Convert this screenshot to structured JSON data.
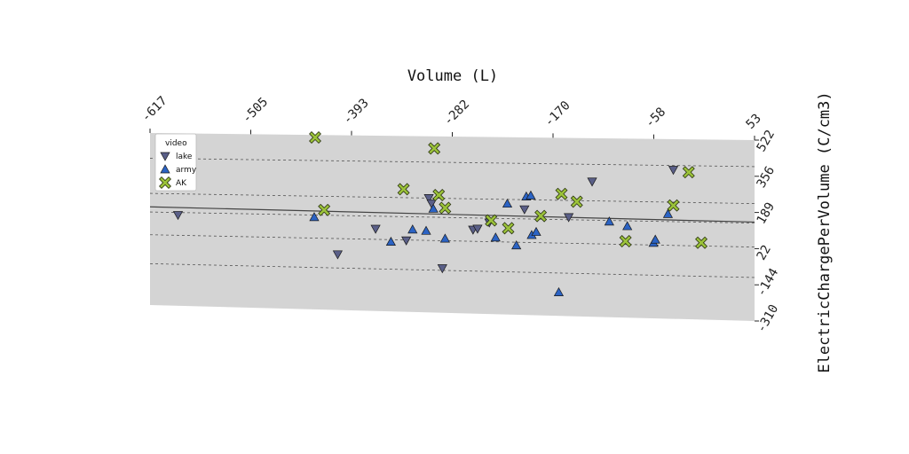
{
  "chart_data": {
    "type": "scatter",
    "xlabel": "Volume (L)",
    "ylabel": "ElectricChargePerVolume (C/cm3)",
    "x_ticks": [
      "-617",
      "-505",
      "-393",
      "-282",
      "-170",
      "-58",
      "53"
    ],
    "y_ticks": [
      "522",
      "356",
      "189",
      "22",
      "-144",
      "-310"
    ],
    "xlim": [
      -617,
      53
    ],
    "ylim": [
      -310,
      522
    ],
    "legend": {
      "title": "video",
      "placement": "top-left"
    },
    "trend_line": {
      "x": [
        -617,
        53
      ],
      "y": [
        165,
        145
      ]
    },
    "grid": "dashed-horizontal",
    "colors": {
      "lake": "#5a5f88",
      "army": "#2b63c4",
      "AK": "#9bc23a",
      "plot_bg": "#d4d4d4"
    },
    "series": [
      {
        "name": "lake",
        "marker": "triangle-down",
        "points": [
          [
            -586,
            128
          ],
          [
            -409,
            -45
          ],
          [
            -367,
            80
          ],
          [
            -333,
            28
          ],
          [
            -308,
            230
          ],
          [
            -305,
            205
          ],
          [
            -293,
            -100
          ],
          [
            -259,
            85
          ],
          [
            -254,
            90
          ],
          [
            -241,
            120
          ],
          [
            -202,
            185
          ],
          [
            -153,
            152
          ],
          [
            -127,
            320
          ],
          [
            -37,
            380
          ]
        ]
      },
      {
        "name": "army",
        "marker": "triangle-up",
        "points": [
          [
            -435,
            130
          ],
          [
            -350,
            20
          ],
          [
            -326,
            80
          ],
          [
            -311,
            75
          ],
          [
            -303,
            180
          ],
          [
            -290,
            40
          ],
          [
            -234,
            50
          ],
          [
            -221,
            210
          ],
          [
            -211,
            15
          ],
          [
            -200,
            245
          ],
          [
            -195,
            250
          ],
          [
            -194,
            65
          ],
          [
            -189,
            80
          ],
          [
            -164,
            -200
          ],
          [
            -108,
            135
          ],
          [
            -88,
            115
          ],
          [
            -59,
            40
          ],
          [
            -57,
            55
          ],
          [
            -43,
            175
          ]
        ]
      },
      {
        "name": "AK",
        "marker": "x",
        "points": [
          [
            -434,
            510
          ],
          [
            -424,
            165
          ],
          [
            -336,
            270
          ],
          [
            -302,
            465
          ],
          [
            -297,
            245
          ],
          [
            -290,
            185
          ],
          [
            -239,
            130
          ],
          [
            -220,
            95
          ],
          [
            -184,
            155
          ],
          [
            -161,
            260
          ],
          [
            -144,
            225
          ],
          [
            -90,
            45
          ],
          [
            -37,
            215
          ],
          [
            -20,
            370
          ],
          [
            -6,
            45
          ]
        ]
      }
    ]
  }
}
